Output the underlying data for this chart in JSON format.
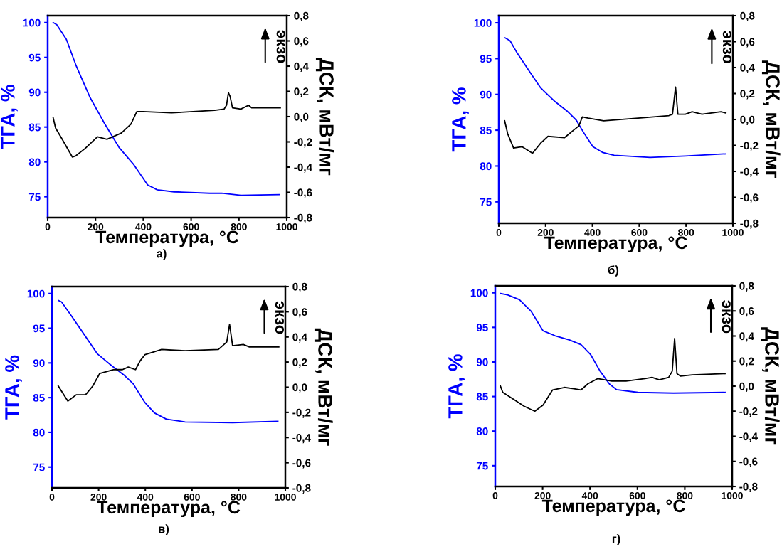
{
  "chart_data": [
    {
      "type": "line",
      "xlabel": "Температура, °C",
      "ylabel": "ТГА, %",
      "y2label": "ДСК, мВт/мг",
      "annotations": [
        "экзо",
        "а)"
      ],
      "xlim": [
        0,
        1000
      ],
      "xticks": [
        0,
        200,
        400,
        600,
        800,
        1000
      ],
      "ylim": [
        72,
        101
      ],
      "yticks": [
        75,
        80,
        85,
        90,
        95,
        100
      ],
      "y2lim": [
        -0.8,
        0.8
      ],
      "y2ticks": [
        {
          "value": -0.8,
          "label": "-0,8"
        },
        {
          "value": -0.6,
          "label": "-0,6"
        },
        {
          "value": -0.4,
          "label": "-0,4"
        },
        {
          "value": -0.2,
          "label": "-0,2"
        },
        {
          "value": 0.0,
          "label": "0,0"
        },
        {
          "value": 0.2,
          "label": "0,2"
        },
        {
          "value": 0.4,
          "label": "0,4"
        },
        {
          "value": 0.6,
          "label": "0,6"
        },
        {
          "value": 0.8,
          "label": "0,8"
        }
      ],
      "grid": false,
      "legend": false,
      "series": [
        {
          "color": "#0000ff",
          "x": [
            23,
            38,
            78,
            118,
            178,
            238,
            298,
            358,
            418,
            458,
            528,
            678,
            728,
            808,
            968
          ],
          "values": [
            100.0,
            99.7,
            97.6,
            93.9,
            89.2,
            85.5,
            82.1,
            79.7,
            76.7,
            76.0,
            75.7,
            75.5,
            75.5,
            75.2,
            75.3
          ]
        },
        {
          "color": "#000000",
          "axis": "y2",
          "x": [
            23,
            33,
            58,
            103,
            118,
            158,
            208,
            248,
            308,
            348,
            373,
            398,
            518,
            698,
            738,
            748,
            756,
            763,
            773,
            808,
            840,
            853,
            928,
            973
          ],
          "values": [
            -0.01,
            -0.09,
            -0.17,
            -0.32,
            -0.31,
            -0.25,
            -0.16,
            -0.18,
            -0.13,
            -0.06,
            0.04,
            0.04,
            0.03,
            0.05,
            0.06,
            0.09,
            0.19,
            0.16,
            0.07,
            0.06,
            0.09,
            0.07,
            0.07,
            0.07
          ]
        }
      ]
    },
    {
      "type": "line",
      "xlabel": "Температура, °C",
      "ylabel": "ТГА, %",
      "y2label": "ДСК, мВт/мг",
      "annotations": [
        "экзо",
        "б)"
      ],
      "xlim": [
        0,
        1000
      ],
      "xticks": [
        0,
        200,
        400,
        600,
        800,
        1000
      ],
      "ylim": [
        72,
        101
      ],
      "yticks": [
        75,
        80,
        85,
        90,
        95,
        100
      ],
      "y2lim": [
        -0.8,
        0.8
      ],
      "y2ticks": [
        {
          "value": -0.8,
          "label": "-0,8"
        },
        {
          "value": -0.6,
          "label": "-0,6"
        },
        {
          "value": -0.4,
          "label": "-0,4"
        },
        {
          "value": -0.2,
          "label": "-0,2"
        },
        {
          "value": 0.0,
          "label": "0,0"
        },
        {
          "value": 0.2,
          "label": "0,2"
        },
        {
          "value": 0.4,
          "label": "0,4"
        },
        {
          "value": 0.6,
          "label": "0,6"
        },
        {
          "value": 0.8,
          "label": "0,8"
        }
      ],
      "grid": false,
      "legend": false,
      "series": [
        {
          "color": "#0000ff",
          "x": [
            27,
            48,
            78,
            129,
            179,
            240,
            291,
            331,
            362,
            402,
            443,
            493,
            646,
            797,
            970
          ],
          "values": [
            97.9,
            97.5,
            95.8,
            93.3,
            90.9,
            89.0,
            87.7,
            86.4,
            84.7,
            82.7,
            81.9,
            81.5,
            81.2,
            81.4,
            81.7
          ]
        },
        {
          "color": "#000000",
          "axis": "y2",
          "x": [
            25,
            38,
            63,
            99,
            144,
            180,
            210,
            281,
            321,
            342,
            357,
            382,
            448,
            595,
            727,
            742,
            755,
            765,
            797,
            826,
            868,
            949,
            970
          ],
          "values": [
            -0.01,
            -0.11,
            -0.22,
            -0.21,
            -0.26,
            -0.18,
            -0.13,
            -0.14,
            -0.08,
            -0.05,
            0.02,
            0.01,
            -0.01,
            0.01,
            0.03,
            0.04,
            0.25,
            0.04,
            0.04,
            0.06,
            0.04,
            0.06,
            0.05
          ]
        }
      ]
    },
    {
      "type": "line",
      "xlabel": "Температура, °C",
      "ylabel": "ТГА, %",
      "y2label": "ДСК, мВт/мг",
      "annotations": [
        "экзо",
        "в)"
      ],
      "xlim": [
        0,
        1000
      ],
      "xticks": [
        0,
        200,
        400,
        600,
        800,
        1000
      ],
      "ylim": [
        72,
        101
      ],
      "yticks": [
        75,
        80,
        85,
        90,
        95,
        100
      ],
      "y2lim": [
        -0.8,
        0.8
      ],
      "y2ticks": [
        {
          "value": -0.8,
          "label": "-0,8"
        },
        {
          "value": -0.6,
          "label": "-0,6"
        },
        {
          "value": -0.4,
          "label": "-0,4"
        },
        {
          "value": -0.2,
          "label": "-0,2"
        },
        {
          "value": 0.0,
          "label": "0,0"
        },
        {
          "value": 0.2,
          "label": "0,2"
        },
        {
          "value": 0.4,
          "label": "0,4"
        },
        {
          "value": 0.6,
          "label": "0,6"
        },
        {
          "value": 0.8,
          "label": "0,8"
        }
      ],
      "grid": false,
      "legend": false,
      "series": [
        {
          "color": "#0000ff",
          "x": [
            28,
            41,
            83,
            134,
            195,
            256,
            307,
            348,
            398,
            439,
            490,
            571,
            774,
            968
          ],
          "values": [
            99.0,
            98.8,
            96.8,
            94.3,
            91.3,
            89.6,
            88.3,
            87.0,
            84.3,
            82.8,
            81.9,
            81.5,
            81.4,
            81.6
          ]
        },
        {
          "color": "#000000",
          "axis": "y2",
          "x": [
            27,
            68,
            104,
            144,
            175,
            205,
            266,
            302,
            327,
            358,
            378,
            399,
            470,
            571,
            713,
            749,
            761,
            774,
            820,
            846,
            972
          ],
          "values": [
            0.01,
            -0.11,
            -0.06,
            -0.06,
            0.01,
            0.11,
            0.14,
            0.14,
            0.16,
            0.14,
            0.21,
            0.26,
            0.3,
            0.29,
            0.3,
            0.36,
            0.5,
            0.33,
            0.34,
            0.32,
            0.32
          ]
        }
      ]
    },
    {
      "type": "line",
      "xlabel": "Температура, °C",
      "ylabel": "ТГА, %",
      "y2label": "ДСК, мВт/мг",
      "annotations": [
        "экзо",
        "г)"
      ],
      "xlim": [
        0,
        1000
      ],
      "xticks": [
        0,
        200,
        400,
        600,
        800,
        1000
      ],
      "ylim": [
        72,
        101
      ],
      "yticks": [
        75,
        80,
        85,
        90,
        95,
        100
      ],
      "y2lim": [
        -0.8,
        0.8
      ],
      "y2ticks": [
        {
          "value": -0.8,
          "label": "-0,8"
        },
        {
          "value": -0.6,
          "label": "-0,6"
        },
        {
          "value": -0.4,
          "label": "-0,4"
        },
        {
          "value": -0.2,
          "label": "-0,2"
        },
        {
          "value": 0.0,
          "label": "0,0"
        },
        {
          "value": 0.2,
          "label": "0,2"
        },
        {
          "value": 0.4,
          "label": "0,4"
        },
        {
          "value": 0.6,
          "label": "0,6"
        },
        {
          "value": 0.8,
          "label": "0,8"
        }
      ],
      "grid": false,
      "legend": false,
      "series": [
        {
          "color": "#0000ff",
          "x": [
            22,
            52,
            102,
            152,
            202,
            252,
            312,
            362,
            402,
            442,
            482,
            512,
            602,
            752,
            970
          ],
          "values": [
            99.9,
            99.7,
            99.0,
            97.3,
            94.5,
            93.8,
            93.2,
            92.5,
            91.1,
            88.7,
            86.8,
            86.0,
            85.6,
            85.5,
            85.6
          ]
        },
        {
          "color": "#000000",
          "axis": "y2",
          "x": [
            22,
            32,
            82,
            122,
            167,
            202,
            242,
            292,
            332,
            362,
            392,
            432,
            492,
            552,
            632,
            662,
            692,
            732,
            747,
            757,
            767,
            782,
            832,
            970
          ],
          "values": [
            0.0,
            -0.05,
            -0.11,
            -0.16,
            -0.2,
            -0.15,
            -0.03,
            -0.01,
            -0.02,
            -0.03,
            0.02,
            0.06,
            0.04,
            0.04,
            0.06,
            0.07,
            0.05,
            0.07,
            0.12,
            0.38,
            0.1,
            0.08,
            0.09,
            0.1
          ]
        }
      ]
    }
  ]
}
